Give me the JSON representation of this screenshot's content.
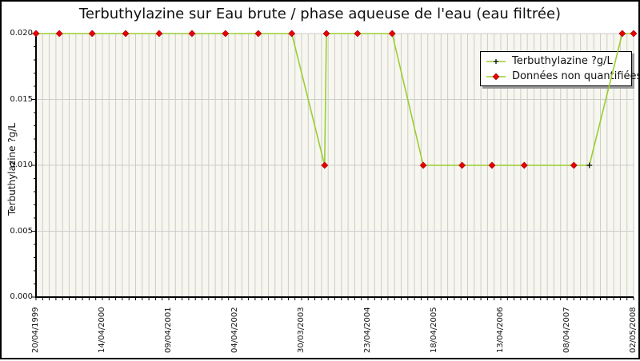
{
  "chart_data": {
    "type": "line",
    "title": "Terbuthylazine sur Eau brute / phase aqueuse de l'eau (eau filtrée)",
    "ylabel": "Terbuthylazine ?g/L",
    "xlabel": "",
    "ylim": [
      0.0,
      0.02
    ],
    "y_tick_labels": [
      "0.000",
      "0.005",
      "0.010",
      "0.015",
      "0.020"
    ],
    "y_minor_step": 0.001,
    "x_tick_labels": [
      "20/04/1999",
      "14/04/2000",
      "09/04/2001",
      "04/04/2002",
      "30/03/2003",
      "23/04/2004",
      "18/04/2005",
      "13/04/2006",
      "08/04/2007",
      "02/05/2008"
    ],
    "x_minor_per_major": 10,
    "grid": "vertical-minor-on, horizontal-major-on",
    "legend": {
      "position": "top-right",
      "entries": [
        {
          "label": "Terbuthylazine ?g/L",
          "marker": "plus"
        },
        {
          "label": "Données non quantifiées",
          "marker": "diamond"
        }
      ]
    },
    "series": [
      {
        "name": "Terbuthylazine ?g/L",
        "points": [
          {
            "x_frac": 0.0,
            "year": 1999.3,
            "value": 0.02,
            "quantified": false
          },
          {
            "x_frac": 0.039,
            "year": 1999.65,
            "value": 0.02,
            "quantified": false
          },
          {
            "x_frac": 0.094,
            "year": 2000.15,
            "value": 0.02,
            "quantified": false
          },
          {
            "x_frac": 0.15,
            "year": 2000.65,
            "value": 0.02,
            "quantified": false
          },
          {
            "x_frac": 0.206,
            "year": 2001.16,
            "value": 0.02,
            "quantified": false
          },
          {
            "x_frac": 0.261,
            "year": 2001.65,
            "value": 0.02,
            "quantified": false
          },
          {
            "x_frac": 0.317,
            "year": 2002.16,
            "value": 0.02,
            "quantified": false
          },
          {
            "x_frac": 0.372,
            "year": 2002.65,
            "value": 0.02,
            "quantified": false
          },
          {
            "x_frac": 0.428,
            "year": 2003.16,
            "value": 0.02,
            "quantified": false
          },
          {
            "x_frac": 0.483,
            "year": 2003.65,
            "value": 0.01,
            "quantified": false
          },
          {
            "x_frac": 0.486,
            "year": 2003.68,
            "value": 0.02,
            "quantified": false
          },
          {
            "x_frac": 0.538,
            "year": 2004.15,
            "value": 0.02,
            "quantified": false
          },
          {
            "x_frac": 0.596,
            "year": 2004.67,
            "value": 0.02,
            "quantified": false
          },
          {
            "x_frac": 0.648,
            "year": 2005.14,
            "value": 0.01,
            "quantified": false
          },
          {
            "x_frac": 0.713,
            "year": 2005.73,
            "value": 0.01,
            "quantified": false
          },
          {
            "x_frac": 0.763,
            "year": 2006.18,
            "value": 0.01,
            "quantified": false
          },
          {
            "x_frac": 0.817,
            "year": 2006.66,
            "value": 0.01,
            "quantified": false
          },
          {
            "x_frac": 0.9,
            "year": 2007.41,
            "value": 0.01,
            "quantified": false
          },
          {
            "x_frac": 0.926,
            "year": 2007.65,
            "value": 0.01,
            "quantified": true
          },
          {
            "x_frac": 0.981,
            "year": 2008.15,
            "value": 0.02,
            "quantified": false
          },
          {
            "x_frac": 1.0,
            "year": 2008.32,
            "value": 0.02,
            "quantified": false
          }
        ]
      }
    ],
    "colors": {
      "line": "#9ACD32",
      "non_quantified_marker": "#e60000",
      "non_quantified_marker_edge": "#aa0000",
      "quantified_marker": "#000000",
      "plot_bg": "#f7f7ef",
      "grid": "#cccccc",
      "axis": "#000000",
      "legend_shadow": "#999999",
      "text": "#111111"
    }
  }
}
